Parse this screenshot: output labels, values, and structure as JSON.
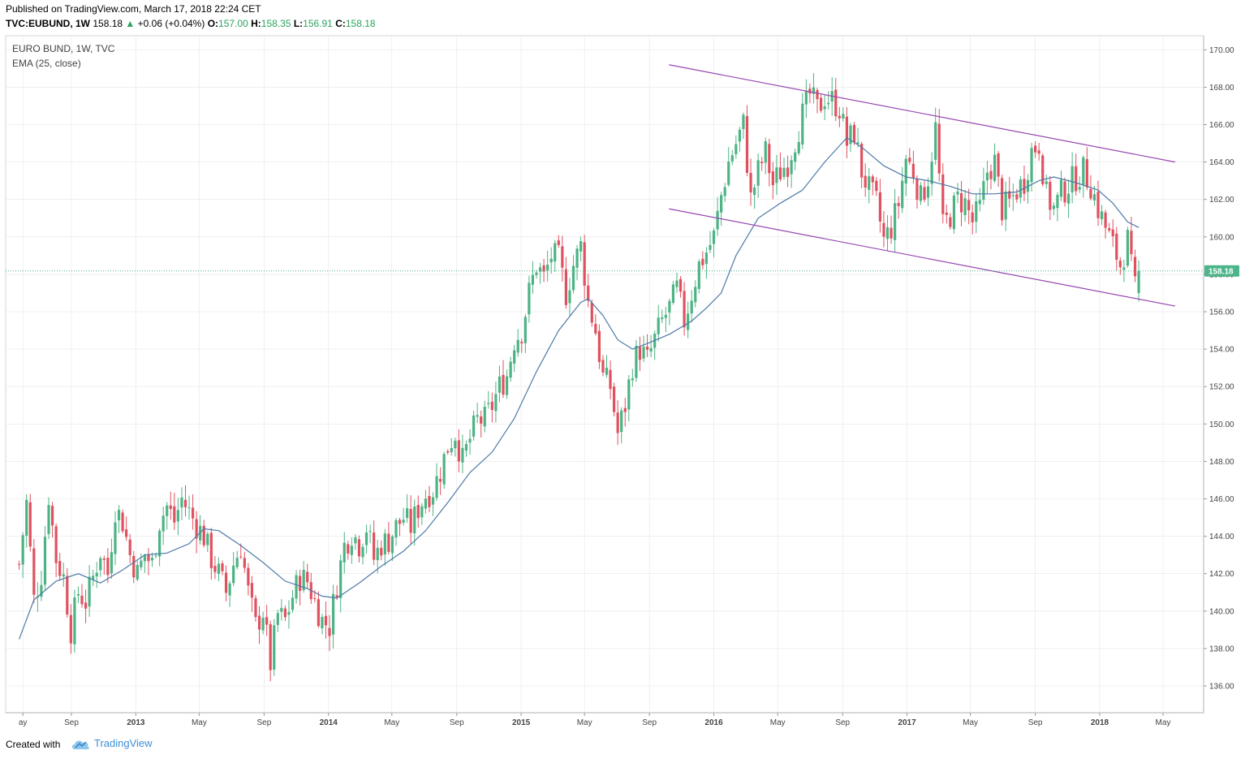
{
  "header": {
    "published": "Published on TradingView.com, March 17, 2018 22:24 CET",
    "symbol": "TVC:EUBUND, 1W",
    "last": "158.18",
    "change_arrow": "▲",
    "change": "+0.06 (+0.04%)",
    "o_label": "O:",
    "o_val": "157.00",
    "h_label": "H:",
    "h_val": "158.35",
    "l_label": "L:",
    "l_val": "156.91",
    "c_label": "C:",
    "c_val": "158.18"
  },
  "legend": {
    "line1": "EURO BUND, 1W, TVC",
    "line2": "EMA (25, close)"
  },
  "footer": {
    "created": "Created with",
    "brand": "TradingView",
    "brand_icon": "tradingview-cloud-icon"
  },
  "colors": {
    "up": "#4db384",
    "down": "#e0515f",
    "ema": "#4e79a7",
    "channel": "#9747b0",
    "last_price_bg": "#4cb58a",
    "grid": "#e6e6e6"
  },
  "chart_data": {
    "type": "candlestick",
    "title": "EURO BUND, 1W, TVC",
    "indicator": "EMA (25, close)",
    "last_price": 158.18,
    "last_price_label": "158.18",
    "y_ticks": [
      "170.00",
      "168.00",
      "166.00",
      "164.00",
      "162.00",
      "160.00",
      "158.00",
      "156.00",
      "154.00",
      "152.00",
      "150.00",
      "148.00",
      "146.00",
      "144.00",
      "142.00",
      "140.00",
      "138.00",
      "136.00"
    ],
    "ylim": [
      135,
      170.5
    ],
    "x_ticks": [
      {
        "label": "ay",
        "date": "2012-06-01"
      },
      {
        "label": "Sep",
        "date": "2012-09-01"
      },
      {
        "label": "2013",
        "date": "2013-01-01"
      },
      {
        "label": "May",
        "date": "2013-05-01"
      },
      {
        "label": "Sep",
        "date": "2013-09-01"
      },
      {
        "label": "2014",
        "date": "2014-01-01"
      },
      {
        "label": "May",
        "date": "2014-05-01"
      },
      {
        "label": "Sep",
        "date": "2014-09-01"
      },
      {
        "label": "2015",
        "date": "2015-01-01"
      },
      {
        "label": "May",
        "date": "2015-05-01"
      },
      {
        "label": "Sep",
        "date": "2015-09-01"
      },
      {
        "label": "2016",
        "date": "2016-01-01"
      },
      {
        "label": "May",
        "date": "2016-05-01"
      },
      {
        "label": "Sep",
        "date": "2016-09-01"
      },
      {
        "label": "2017",
        "date": "2017-01-01"
      },
      {
        "label": "May",
        "date": "2017-05-01"
      },
      {
        "label": "Sep",
        "date": "2017-09-01"
      },
      {
        "label": "2018",
        "date": "2018-01-01"
      },
      {
        "label": "May",
        "date": "2018-05-01"
      }
    ],
    "close_path": [
      [
        "2012-05-25",
        142.5
      ],
      [
        "2012-06-08",
        145.8
      ],
      [
        "2012-06-22",
        140.6
      ],
      [
        "2012-07-06",
        142.0
      ],
      [
        "2012-07-20",
        146.2
      ],
      [
        "2012-08-03",
        142.8
      ],
      [
        "2012-08-17",
        141.8
      ],
      [
        "2012-08-31",
        139.0
      ],
      [
        "2012-09-14",
        141.0
      ],
      [
        "2012-09-28",
        140.5
      ],
      [
        "2012-10-12",
        141.8
      ],
      [
        "2012-10-26",
        143.2
      ],
      [
        "2012-11-09",
        142.0
      ],
      [
        "2012-11-23",
        145.5
      ],
      [
        "2012-12-07",
        144.8
      ],
      [
        "2012-12-21",
        143.0
      ],
      [
        "2013-01-04",
        142.0
      ],
      [
        "2013-01-18",
        143.0
      ],
      [
        "2013-02-01",
        142.5
      ],
      [
        "2013-02-15",
        144.8
      ],
      [
        "2013-03-01",
        145.6
      ],
      [
        "2013-03-15",
        144.8
      ],
      [
        "2013-03-29",
        146.0
      ],
      [
        "2013-04-12",
        145.3
      ],
      [
        "2013-04-26",
        144.6
      ],
      [
        "2013-05-10",
        144.0
      ],
      [
        "2013-05-24",
        142.8
      ],
      [
        "2013-06-07",
        142.0
      ],
      [
        "2013-06-21",
        141.0
      ],
      [
        "2013-07-05",
        142.5
      ],
      [
        "2013-07-19",
        143.5
      ],
      [
        "2013-08-02",
        141.0
      ],
      [
        "2013-08-16",
        139.2
      ],
      [
        "2013-08-30",
        140.0
      ],
      [
        "2013-09-13",
        137.2
      ],
      [
        "2013-09-27",
        139.8
      ],
      [
        "2013-10-11",
        139.5
      ],
      [
        "2013-10-25",
        140.8
      ],
      [
        "2013-11-08",
        141.8
      ],
      [
        "2013-11-22",
        141.6
      ],
      [
        "2013-12-06",
        140.5
      ],
      [
        "2013-12-20",
        139.5
      ],
      [
        "2014-01-03",
        139.2
      ],
      [
        "2014-01-17",
        141.5
      ],
      [
        "2014-01-31",
        143.5
      ],
      [
        "2014-02-14",
        144.2
      ],
      [
        "2014-02-28",
        143.6
      ],
      [
        "2014-03-14",
        144.5
      ],
      [
        "2014-03-28",
        142.8
      ],
      [
        "2014-04-11",
        143.6
      ],
      [
        "2014-04-25",
        143.8
      ],
      [
        "2014-05-09",
        144.5
      ],
      [
        "2014-05-23",
        145.0
      ],
      [
        "2014-06-06",
        144.5
      ],
      [
        "2014-06-20",
        145.5
      ],
      [
        "2014-07-04",
        146.2
      ],
      [
        "2014-07-18",
        146.5
      ],
      [
        "2014-08-01",
        147.5
      ],
      [
        "2014-08-15",
        148.8
      ],
      [
        "2014-08-29",
        149.5
      ],
      [
        "2014-09-12",
        148.0
      ],
      [
        "2014-09-26",
        149.2
      ],
      [
        "2014-10-10",
        150.2
      ],
      [
        "2014-10-24",
        150.2
      ],
      [
        "2014-11-07",
        151.0
      ],
      [
        "2014-11-21",
        152.0
      ],
      [
        "2014-12-05",
        152.6
      ],
      [
        "2014-12-19",
        154.5
      ],
      [
        "2015-01-02",
        155.0
      ],
      [
        "2015-01-16",
        157.0
      ],
      [
        "2015-01-30",
        158.5
      ],
      [
        "2015-02-13",
        157.8
      ],
      [
        "2015-02-27",
        159.0
      ],
      [
        "2015-03-13",
        158.8
      ],
      [
        "2015-03-27",
        157.0
      ],
      [
        "2015-04-10",
        158.5
      ],
      [
        "2015-04-24",
        159.5
      ],
      [
        "2015-05-08",
        156.5
      ],
      [
        "2015-05-22",
        155.0
      ],
      [
        "2015-06-05",
        152.5
      ],
      [
        "2015-06-19",
        152.0
      ],
      [
        "2015-07-03",
        149.5
      ],
      [
        "2015-07-17",
        151.0
      ],
      [
        "2015-07-31",
        153.2
      ],
      [
        "2015-08-14",
        154.0
      ],
      [
        "2015-08-28",
        153.4
      ],
      [
        "2015-09-11",
        154.5
      ],
      [
        "2015-09-25",
        155.5
      ],
      [
        "2015-10-09",
        156.2
      ],
      [
        "2015-10-23",
        157.2
      ],
      [
        "2015-11-06",
        155.5
      ],
      [
        "2015-11-20",
        157.0
      ],
      [
        "2015-12-04",
        158.5
      ],
      [
        "2015-12-18",
        159.2
      ],
      [
        "2016-01-01",
        160.0
      ],
      [
        "2016-01-15",
        162.2
      ],
      [
        "2016-01-29",
        164.0
      ],
      [
        "2016-02-12",
        165.0
      ],
      [
        "2016-02-26",
        166.0
      ],
      [
        "2016-03-11",
        162.0
      ],
      [
        "2016-03-25",
        163.5
      ],
      [
        "2016-04-08",
        164.5
      ],
      [
        "2016-04-22",
        162.8
      ],
      [
        "2016-05-06",
        163.5
      ],
      [
        "2016-05-20",
        164.0
      ],
      [
        "2016-06-03",
        165.2
      ],
      [
        "2016-06-17",
        166.5
      ],
      [
        "2016-07-01",
        167.6
      ],
      [
        "2016-07-15",
        166.8
      ],
      [
        "2016-07-29",
        167.5
      ],
      [
        "2016-08-12",
        167.3
      ],
      [
        "2016-08-26",
        166.9
      ],
      [
        "2016-09-09",
        165.0
      ],
      [
        "2016-09-23",
        165.6
      ],
      [
        "2016-10-07",
        163.5
      ],
      [
        "2016-10-21",
        162.5
      ],
      [
        "2016-11-04",
        161.8
      ],
      [
        "2016-11-18",
        159.8
      ],
      [
        "2016-12-02",
        160.5
      ],
      [
        "2016-12-16",
        161.8
      ],
      [
        "2016-12-30",
        164.2
      ],
      [
        "2017-01-13",
        163.5
      ],
      [
        "2017-01-27",
        162.0
      ],
      [
        "2017-02-10",
        163.2
      ],
      [
        "2017-02-24",
        165.8
      ],
      [
        "2017-03-10",
        160.5
      ],
      [
        "2017-03-24",
        161.2
      ],
      [
        "2017-04-07",
        162.0
      ],
      [
        "2017-04-21",
        161.8
      ],
      [
        "2017-05-05",
        160.8
      ],
      [
        "2017-05-19",
        161.5
      ],
      [
        "2017-06-02",
        163.5
      ],
      [
        "2017-06-16",
        164.0
      ],
      [
        "2017-06-30",
        161.5
      ],
      [
        "2017-07-14",
        161.8
      ],
      [
        "2017-07-28",
        162.5
      ],
      [
        "2017-08-11",
        163.0
      ],
      [
        "2017-08-25",
        164.6
      ],
      [
        "2017-09-08",
        165.0
      ],
      [
        "2017-09-22",
        162.2
      ],
      [
        "2017-10-06",
        161.5
      ],
      [
        "2017-10-20",
        162.3
      ],
      [
        "2017-11-03",
        162.8
      ],
      [
        "2017-11-17",
        163.2
      ],
      [
        "2017-12-01",
        163.5
      ],
      [
        "2017-12-15",
        162.8
      ],
      [
        "2017-12-29",
        161.5
      ],
      [
        "2018-01-12",
        160.5
      ],
      [
        "2018-01-26",
        159.5
      ],
      [
        "2018-02-09",
        158.5
      ],
      [
        "2018-02-23",
        159.8
      ],
      [
        "2018-03-02",
        158.3
      ],
      [
        "2018-03-09",
        157.2
      ],
      [
        "2018-03-16",
        158.18
      ]
    ],
    "ema_path": [
      [
        "2012-05-25",
        138.5
      ],
      [
        "2012-06-22",
        140.6
      ],
      [
        "2012-08-03",
        141.6
      ],
      [
        "2012-09-14",
        142.0
      ],
      [
        "2012-10-26",
        141.5
      ],
      [
        "2012-12-07",
        142.2
      ],
      [
        "2013-01-18",
        143.0
      ],
      [
        "2013-03-01",
        143.1
      ],
      [
        "2013-04-12",
        143.6
      ],
      [
        "2013-05-10",
        144.4
      ],
      [
        "2013-06-07",
        144.3
      ],
      [
        "2013-07-19",
        143.5
      ],
      [
        "2013-08-30",
        142.6
      ],
      [
        "2013-10-11",
        141.6
      ],
      [
        "2013-11-22",
        141.2
      ],
      [
        "2013-12-20",
        140.8
      ],
      [
        "2014-01-17",
        140.7
      ],
      [
        "2014-02-28",
        141.5
      ],
      [
        "2014-04-11",
        142.4
      ],
      [
        "2014-05-23",
        143.2
      ],
      [
        "2014-07-04",
        144.3
      ],
      [
        "2014-08-15",
        145.8
      ],
      [
        "2014-09-26",
        147.4
      ],
      [
        "2014-11-07",
        148.5
      ],
      [
        "2014-12-19",
        150.3
      ],
      [
        "2015-01-30",
        152.8
      ],
      [
        "2015-03-13",
        155.0
      ],
      [
        "2015-04-24",
        156.5
      ],
      [
        "2015-05-08",
        156.7
      ],
      [
        "2015-06-05",
        155.8
      ],
      [
        "2015-07-03",
        154.5
      ],
      [
        "2015-07-31",
        154.0
      ],
      [
        "2015-08-28",
        154.3
      ],
      [
        "2015-10-09",
        154.8
      ],
      [
        "2015-11-20",
        155.5
      ],
      [
        "2015-12-18",
        156.2
      ],
      [
        "2016-01-15",
        157.0
      ],
      [
        "2016-02-12",
        159.0
      ],
      [
        "2016-03-25",
        161.0
      ],
      [
        "2016-05-06",
        161.8
      ],
      [
        "2016-06-17",
        162.5
      ],
      [
        "2016-07-29",
        164.0
      ],
      [
        "2016-09-09",
        165.3
      ],
      [
        "2016-10-07",
        164.8
      ],
      [
        "2016-11-18",
        163.8
      ],
      [
        "2016-12-30",
        163.2
      ],
      [
        "2017-02-10",
        163.0
      ],
      [
        "2017-03-24",
        162.7
      ],
      [
        "2017-05-05",
        162.3
      ],
      [
        "2017-06-16",
        162.3
      ],
      [
        "2017-07-28",
        162.4
      ],
      [
        "2017-09-08",
        163.0
      ],
      [
        "2017-10-06",
        163.2
      ],
      [
        "2017-11-17",
        162.9
      ],
      [
        "2017-12-29",
        162.5
      ],
      [
        "2018-01-26",
        161.8
      ],
      [
        "2018-02-23",
        160.8
      ],
      [
        "2018-03-16",
        160.5
      ]
    ],
    "channel_lines": [
      {
        "name": "",
        "start": [
          "2015-10-08",
          169.2
        ],
        "end": [
          "2018-05-24",
          164.0
        ]
      },
      {
        "name": "",
        "start": [
          "2015-10-08",
          161.5
        ],
        "end": [
          "2018-05-24",
          156.3
        ]
      }
    ]
  }
}
